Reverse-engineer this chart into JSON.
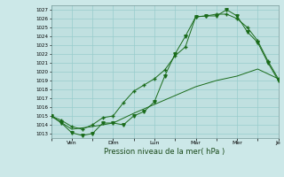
{
  "xlabel": "Pression niveau de la mer( hPa )",
  "bg_color": "#cce8e8",
  "plot_bg_color": "#c0e0e0",
  "grid_color": "#99cccc",
  "line_color": "#1a6b1a",
  "ylim": [
    1012.5,
    1027.5
  ],
  "yticks": [
    1013,
    1014,
    1015,
    1016,
    1017,
    1018,
    1019,
    1020,
    1021,
    1022,
    1023,
    1024,
    1025,
    1026,
    1027
  ],
  "x_labels": [
    "",
    "Ven",
    "",
    "Dim",
    "",
    "Lun",
    "",
    "Mar",
    "",
    "Mer",
    "",
    "Je"
  ],
  "x_positions": [
    0,
    2,
    4,
    6,
    8,
    10,
    12,
    14,
    16,
    18,
    20,
    22
  ],
  "series1_x": [
    0,
    1,
    2,
    3,
    4,
    5,
    6,
    7,
    8,
    9,
    10,
    11,
    12,
    13,
    14,
    15,
    16,
    17,
    18,
    19,
    20,
    21,
    22
  ],
  "series1_y": [
    1015.0,
    1014.2,
    1013.1,
    1012.8,
    1013.0,
    1014.2,
    1014.2,
    1014.0,
    1015.0,
    1015.5,
    1016.6,
    1019.5,
    1022.0,
    1024.0,
    1026.2,
    1026.3,
    1026.3,
    1027.0,
    1026.3,
    1024.5,
    1023.3,
    1021.0,
    1019.0
  ],
  "series2_x": [
    0,
    1,
    2,
    3,
    4,
    5,
    6,
    7,
    8,
    9,
    10,
    11,
    12,
    13,
    14,
    15,
    16,
    17,
    18,
    19,
    20,
    21,
    22
  ],
  "series2_y": [
    1015.0,
    1014.5,
    1013.8,
    1013.5,
    1014.0,
    1014.8,
    1015.0,
    1016.5,
    1017.8,
    1018.5,
    1019.2,
    1020.2,
    1021.8,
    1022.8,
    1026.2,
    1026.3,
    1026.5,
    1026.5,
    1026.0,
    1025.0,
    1023.5,
    1021.2,
    1019.2
  ],
  "series3_x": [
    0,
    2,
    4,
    6,
    8,
    10,
    12,
    14,
    16,
    18,
    20,
    22
  ],
  "series3_y": [
    1015.0,
    1013.5,
    1013.8,
    1014.2,
    1015.3,
    1016.3,
    1017.3,
    1018.3,
    1019.0,
    1019.5,
    1020.3,
    1019.2
  ]
}
